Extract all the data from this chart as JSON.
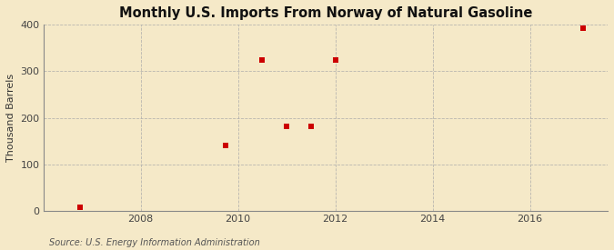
{
  "title": "Monthly U.S. Imports From Norway of Natural Gasoline",
  "ylabel": "Thousand Barrels",
  "source_text": "Source: U.S. Energy Information Administration",
  "background_color": "#f5e9c8",
  "plot_bg_color": "#f5e9c8",
  "grid_color": "#aaaaaa",
  "marker_color": "#cc0000",
  "marker_size": 4,
  "xlim_start": 2006.0,
  "xlim_end": 2017.6,
  "ylim": [
    0,
    400
  ],
  "yticks": [
    0,
    100,
    200,
    300,
    400
  ],
  "xticks": [
    2008,
    2010,
    2012,
    2014,
    2016
  ],
  "data_points": [
    [
      2006.75,
      8
    ],
    [
      2009.75,
      140
    ],
    [
      2010.5,
      325
    ],
    [
      2011.0,
      182
    ],
    [
      2011.5,
      182
    ],
    [
      2012.0,
      325
    ],
    [
      2017.1,
      393
    ]
  ]
}
